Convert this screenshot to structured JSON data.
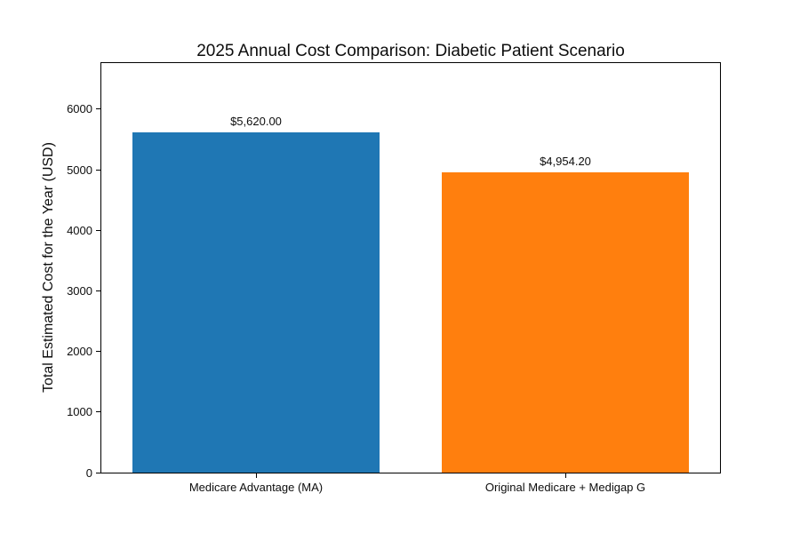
{
  "chart_data": {
    "type": "bar",
    "title": "2025 Annual Cost Comparison: Diabetic Patient Scenario",
    "xlabel": "",
    "ylabel": "Total Estimated Cost for the Year (USD)",
    "categories": [
      "Medicare Advantage (MA)",
      "Original Medicare + Medigap G"
    ],
    "values": [
      5620.0,
      4954.2
    ],
    "bar_labels": [
      "$5,620.00",
      "$4,954.20"
    ],
    "bar_colors": [
      "#1f77b4",
      "#ff7f0e"
    ],
    "yticks": [
      0,
      1000,
      2000,
      3000,
      4000,
      5000,
      6000
    ],
    "ylim": [
      0,
      6760
    ],
    "bar_width_fraction": 0.8,
    "grid": false,
    "legend": "none",
    "background_color": "#ffffff",
    "text_color": "#0d0d0d"
  }
}
